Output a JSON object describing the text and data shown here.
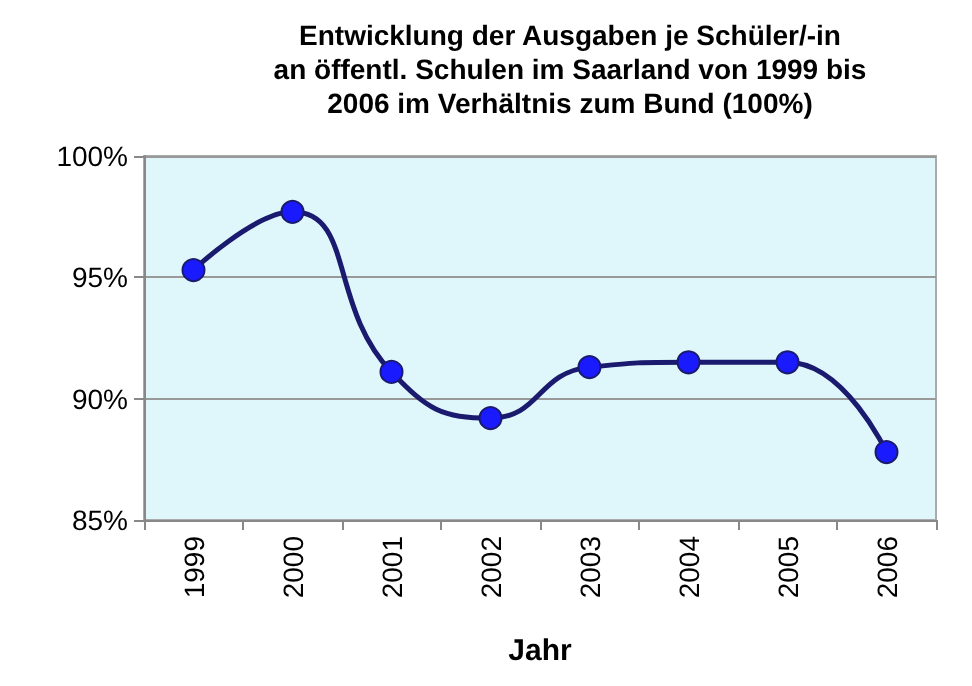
{
  "chart_data": {
    "type": "line",
    "title": "Entwicklung der Ausgaben je Schüler/-in\nan öffentl. Schulen im Saarland von 1999 bis\n2006 im Verhältnis zum Bund (100%)",
    "xlabel": "Jahr",
    "categories": [
      "1999",
      "2000",
      "2001",
      "2002",
      "2003",
      "2004",
      "2005",
      "2006"
    ],
    "series": [
      {
        "color": "#1a1a6e",
        "values": [
          95.3,
          97.7,
          91.1,
          89.2,
          91.3,
          91.5,
          91.5,
          87.8
        ]
      }
    ],
    "ylim": [
      85,
      100
    ],
    "yticks": [
      {
        "value": 85,
        "label": "85%"
      },
      {
        "value": 90,
        "label": "90%"
      },
      {
        "value": 95,
        "label": "95%"
      },
      {
        "value": 100,
        "label": "100%"
      }
    ],
    "grid": "y",
    "marker": "circle",
    "line_style": "solid"
  }
}
